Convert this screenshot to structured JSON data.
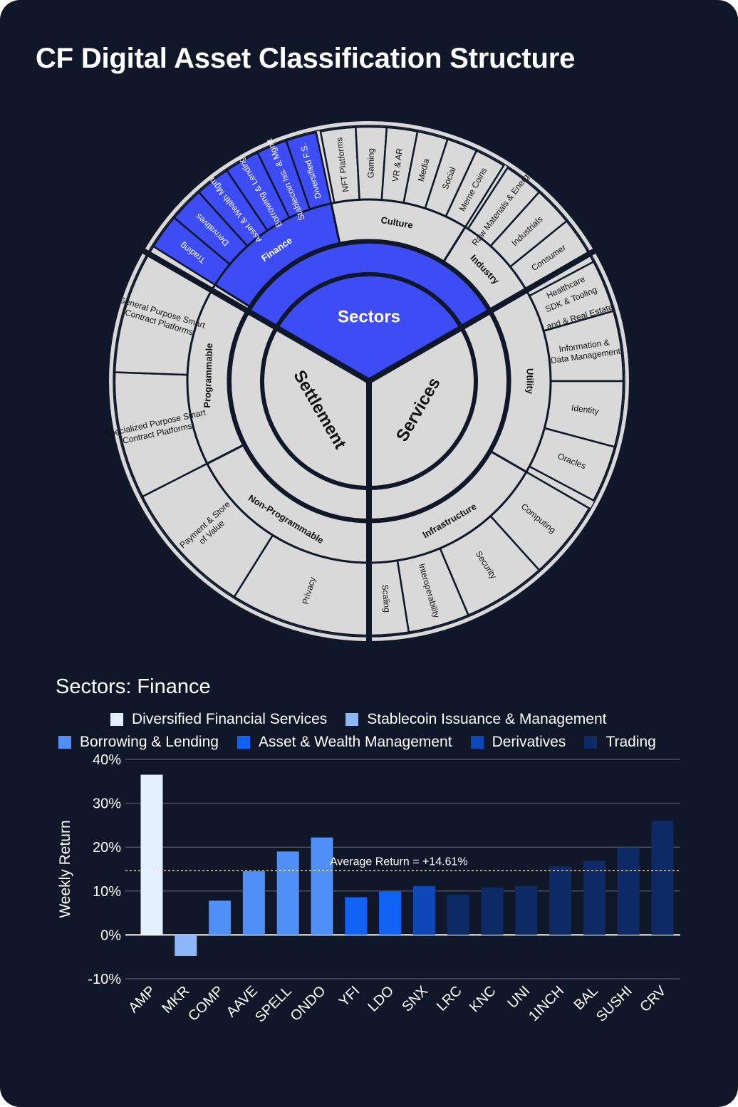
{
  "title": "CF Digital Asset Classification Structure",
  "sunburst": {
    "center": "Sectors",
    "sectors": [
      "Settlement",
      "Services"
    ],
    "subsectors": [
      "Finance",
      "Culture",
      "Industry",
      "Utility",
      "Infrastructure",
      "Non-Programmable",
      "Programmable"
    ],
    "industries": {
      "finance": [
        "Trading",
        "Derivatives",
        "Asset & Wealth Mgmt",
        "Borrowing & Lending",
        "Stablecoin Iss. & Mgmt",
        "Diversified F.S."
      ],
      "culture": [
        "NFT Platforms",
        "Gaming",
        "VR & AR",
        "Media",
        "Social",
        "Meme Coins"
      ],
      "industry": [
        "Raw Materials & Energy",
        "Industrials",
        "Consumer",
        "Healthcare",
        "Land & Real Estate"
      ],
      "utility": [
        "SDK & Tooling",
        "Information & Data Management",
        "Identity",
        "Oracles"
      ],
      "infrastructure": [
        "Computing",
        "Security",
        "Interoperability",
        "Scaling"
      ],
      "nonprog": [
        "Privacy",
        "Payment & Store of Value"
      ],
      "prog": [
        "Specialized Purpose Smart Contract Platforms",
        "General Purpose Smart Contract Platforms"
      ]
    }
  },
  "section_title": "Sectors: Finance",
  "legend": [
    {
      "label": "Diversified Financial Services",
      "color": "#e3eeff"
    },
    {
      "label": "Stablecoin Issuance & Management",
      "color": "#8db6fb"
    },
    {
      "label": "Borrowing & Lending",
      "color": "#4f8ff7"
    },
    {
      "label": "Asset & Wealth Management",
      "color": "#0f62f3"
    },
    {
      "label": "Derivatives",
      "color": "#0d47b8"
    },
    {
      "label": "Trading",
      "color": "#0d2a66"
    }
  ],
  "chart_data": {
    "type": "bar",
    "ylabel": "Weekly Return",
    "ylim": [
      -10,
      40
    ],
    "yticks": [
      "40%",
      "30%",
      "20%",
      "10%",
      "0%",
      "-10%"
    ],
    "categories": [
      "AMP",
      "MKR",
      "COMP",
      "AAVE",
      "SPELL",
      "ONDO",
      "YFI",
      "LDO",
      "SNX",
      "LRC",
      "KNC",
      "UNI",
      "1INCH",
      "BAL",
      "SUSHI",
      "CRV"
    ],
    "values": [
      36.5,
      -4.8,
      7.8,
      14.5,
      19.0,
      22.2,
      8.6,
      9.9,
      11.1,
      9.2,
      10.8,
      11.1,
      15.6,
      16.9,
      19.9,
      26.0
    ],
    "groups": [
      0,
      1,
      2,
      2,
      2,
      2,
      3,
      3,
      4,
      5,
      5,
      5,
      5,
      5,
      5,
      5
    ],
    "average": {
      "value": 14.61,
      "label": "Average Return = +14.61%"
    }
  }
}
